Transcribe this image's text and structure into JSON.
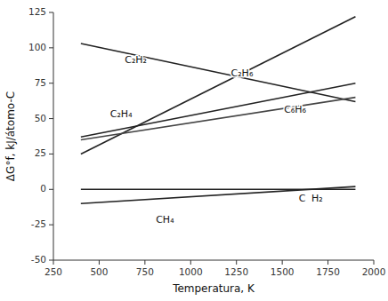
{
  "chart_data": {
    "type": "line",
    "xlabel": "Temperatura, K",
    "ylabel": "ΔG°f, kJ/átomo-C",
    "xlim": [
      250,
      2000
    ],
    "ylim": [
      -50,
      125
    ],
    "xticks": [
      250,
      500,
      750,
      1000,
      1250,
      1500,
      1750,
      2000
    ],
    "yticks": [
      -50,
      -25,
      0,
      25,
      50,
      75,
      100,
      125
    ],
    "grid": false,
    "series": [
      {
        "color": "#222222",
        "x": [
          400,
          1900
        ],
        "values": [
          103,
          62
        ]
      },
      {
        "color": "#222222",
        "x": [
          400,
          1900
        ],
        "values": [
          25,
          122
        ]
      },
      {
        "color": "#222222",
        "x": [
          400,
          1900
        ],
        "values": [
          37,
          75
        ]
      },
      {
        "color": "#444444",
        "x": [
          400,
          1900
        ],
        "values": [
          35,
          65
        ]
      },
      {
        "color": "#222222",
        "x": [
          400,
          1900
        ],
        "values": [
          -10,
          2
        ]
      },
      {
        "color": "#222222",
        "x": [
          400,
          1900
        ],
        "values": [
          0,
          0
        ]
      }
    ],
    "annotations": [
      {
        "text": "C₂H₂",
        "x": 640,
        "y": 91
      },
      {
        "text": "C₂H₆",
        "x": 1220,
        "y": 82
      },
      {
        "text": "C₂H₄",
        "x": 560,
        "y": 53
      },
      {
        "text": "C₆H₆",
        "x": 1510,
        "y": 56
      },
      {
        "text": "CH₄",
        "x": 810,
        "y": -22
      },
      {
        "text": "C",
        "x": 1590,
        "y": -7
      },
      {
        "text": "H₂",
        "x": 1660,
        "y": -7
      }
    ]
  }
}
